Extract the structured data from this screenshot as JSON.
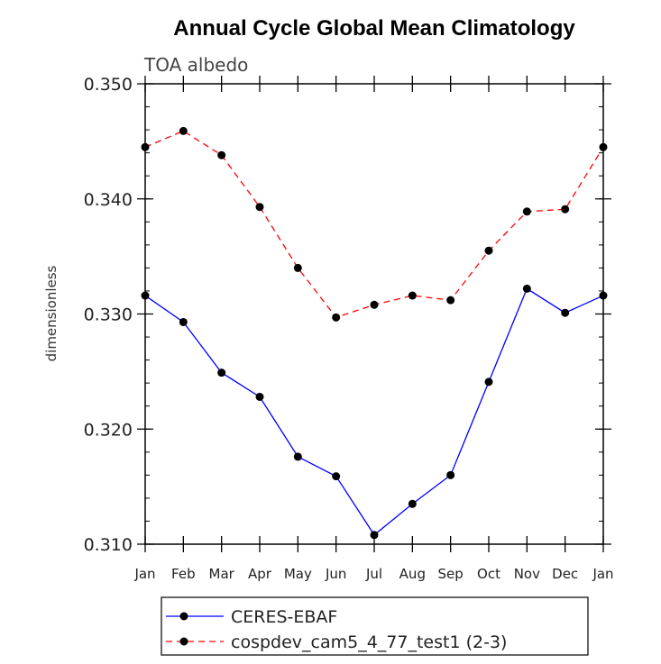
{
  "chart_data": {
    "type": "line",
    "title": "Annual Cycle Global Mean Climatology",
    "subtitle": "TOA albedo",
    "ylabel": "dimensionless",
    "xlabel": "",
    "categories": [
      "Jan",
      "Feb",
      "Mar",
      "Apr",
      "May",
      "Jun",
      "Jul",
      "Aug",
      "Sep",
      "Oct",
      "Nov",
      "Dec",
      "Jan"
    ],
    "ylim": [
      0.31,
      0.35
    ],
    "yticks": [
      "0.310",
      "0.320",
      "0.330",
      "0.340",
      "0.350"
    ],
    "grid": false,
    "legend_position": "bottom",
    "series": [
      {
        "name": "CERES-EBAF",
        "color": "#0000ff",
        "style": "solid",
        "values": [
          0.3316,
          0.3293,
          0.3249,
          0.3228,
          0.3176,
          0.3159,
          0.3108,
          0.3135,
          0.316,
          0.3241,
          0.3322,
          0.3301,
          0.3316
        ]
      },
      {
        "name": "cospdev_cam5_4_77_test1 (2-3)",
        "color": "#ff0000",
        "style": "dashed",
        "values": [
          0.3445,
          0.3459,
          0.3438,
          0.3393,
          0.334,
          0.3297,
          0.3308,
          0.3316,
          0.3312,
          0.3355,
          0.3389,
          0.3391,
          0.3445
        ]
      }
    ]
  }
}
